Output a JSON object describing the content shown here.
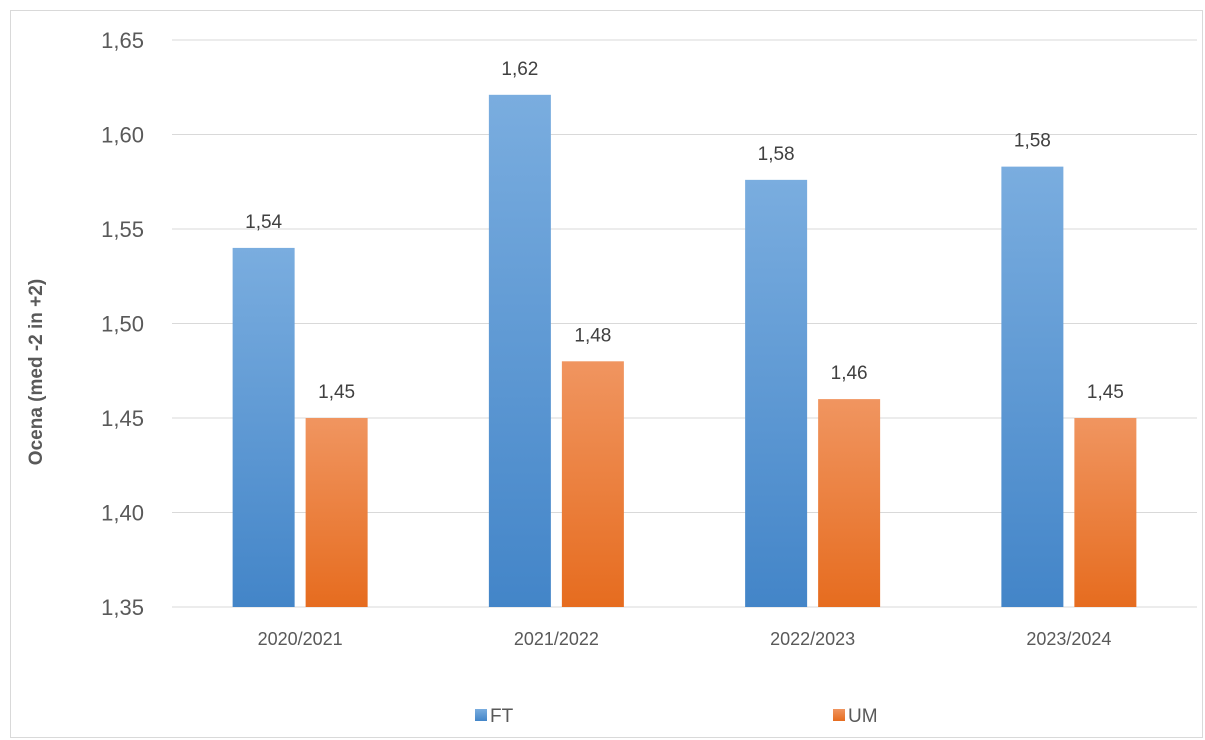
{
  "chart_data": {
    "type": "bar",
    "title": "",
    "xlabel": "",
    "ylabel": "Ocena (med -2 in +2)",
    "ylim": [
      1.35,
      1.65
    ],
    "yticks": [
      "1,35",
      "1,40",
      "1,45",
      "1,50",
      "1,55",
      "1,60",
      "1,65"
    ],
    "ytick_values": [
      1.35,
      1.4,
      1.45,
      1.5,
      1.55,
      1.6,
      1.65
    ],
    "grid": true,
    "legend_position": "bottom",
    "categories": [
      "2020/2021",
      "2021/2022",
      "2022/2023",
      "2023/2024"
    ],
    "series": [
      {
        "name": "FT",
        "color": "#5b9bd5",
        "values": [
          1.54,
          1.621,
          1.576,
          1.583
        ],
        "labels": [
          "1,54",
          "1,62",
          "1,58",
          "1,58"
        ]
      },
      {
        "name": "UM",
        "color": "#ed7d31",
        "values": [
          1.45,
          1.48,
          1.46,
          1.45
        ],
        "labels": [
          "1,45",
          "1,48",
          "1,46",
          "1,45"
        ]
      }
    ]
  }
}
